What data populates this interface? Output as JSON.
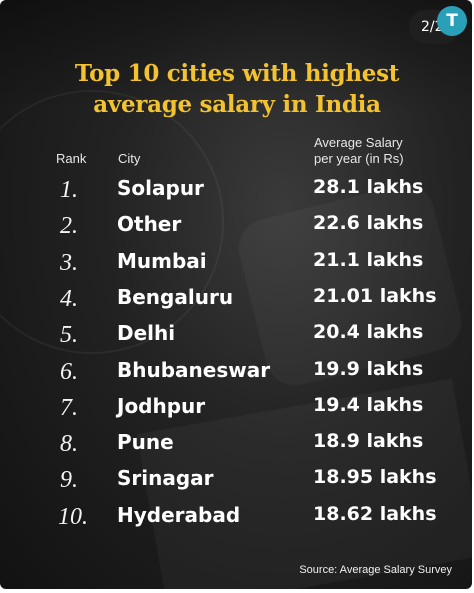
{
  "page_badge": "2/2",
  "logo_letter": "T",
  "chart_data": {
    "type": "table",
    "title_lines": [
      "Top 10 cities with highest",
      "average salary in India"
    ],
    "columns": {
      "rank": "Rank",
      "city": "City",
      "salary_lines": [
        "Average Salary",
        "per year (in Rs)"
      ]
    },
    "rows": [
      {
        "rank": "1.",
        "city": "Solapur",
        "salary": "28.1 lakhs"
      },
      {
        "rank": "2.",
        "city": "Other",
        "salary": "22.6 lakhs"
      },
      {
        "rank": "3.",
        "city": "Mumbai",
        "salary": "21.1 lakhs"
      },
      {
        "rank": "4.",
        "city": "Bengaluru",
        "salary": "21.01 lakhs"
      },
      {
        "rank": "5.",
        "city": "Delhi",
        "salary": "20.4 lakhs"
      },
      {
        "rank": "6.",
        "city": "Bhubaneswar",
        "salary": "19.9 lakhs"
      },
      {
        "rank": "7.",
        "city": "Jodhpur",
        "salary": "19.4 lakhs"
      },
      {
        "rank": "8.",
        "city": "Pune",
        "salary": "18.9 lakhs"
      },
      {
        "rank": "9.",
        "city": "Srinagar",
        "salary": "18.95 lakhs"
      },
      {
        "rank": "10.",
        "city": "Hyderabad",
        "salary": "18.62 lakhs"
      }
    ],
    "source": "Source: Average Salary Survey"
  }
}
